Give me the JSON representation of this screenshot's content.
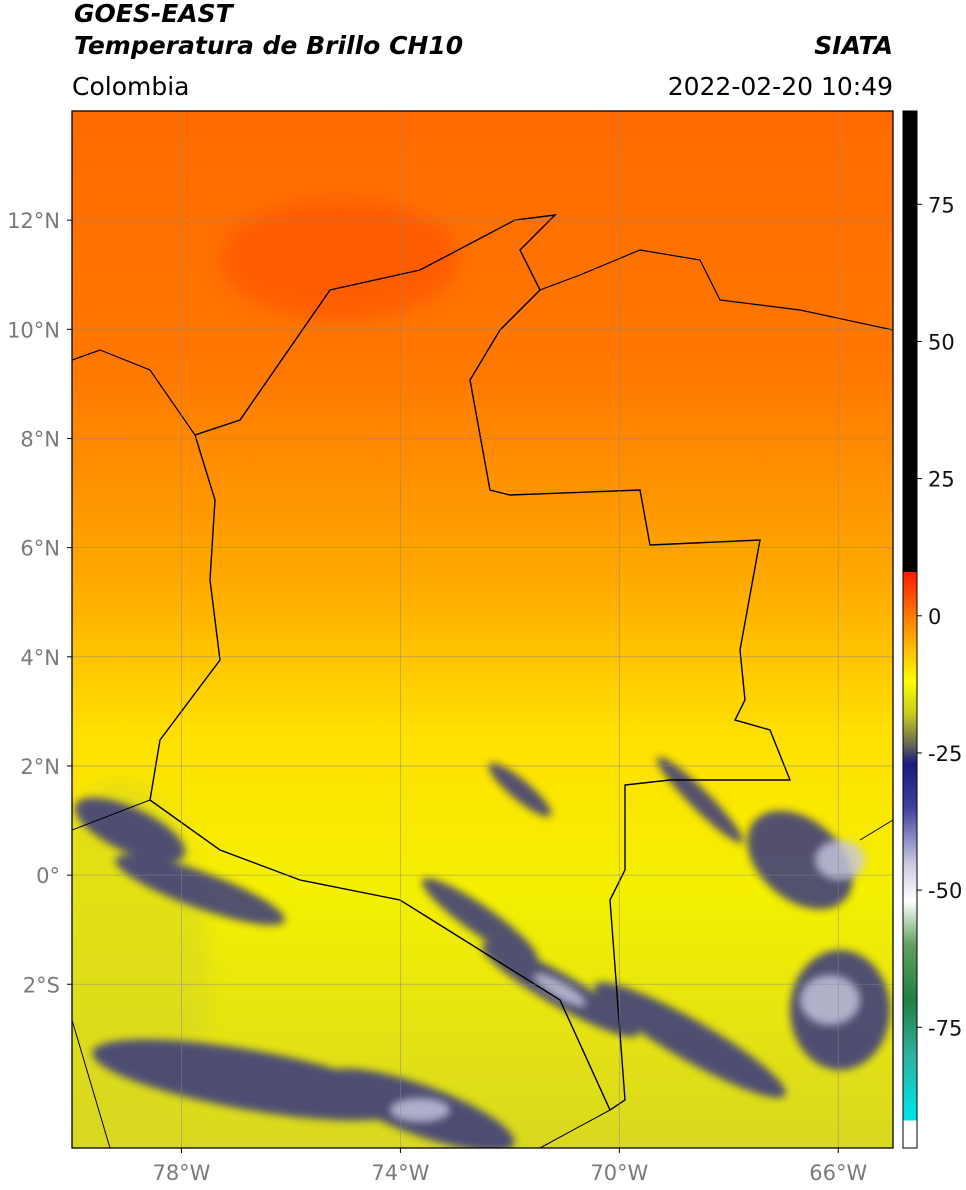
{
  "header": {
    "title": "GOES-EAST",
    "subtitle": "Temperatura de Brillo CH10",
    "source": "SIATA",
    "region": "Colombia",
    "datetime": "2022-02-20 10:49"
  },
  "map": {
    "xlim": [
      -80,
      -65
    ],
    "ylim": [
      -5,
      14
    ],
    "grid": true,
    "xticks": [
      {
        "value": -78,
        "label": "78°W"
      },
      {
        "value": -74,
        "label": "74°W"
      },
      {
        "value": -70,
        "label": "70°W"
      },
      {
        "value": -66,
        "label": "66°W"
      }
    ],
    "yticks": [
      {
        "value": 12,
        "label": "12°N"
      },
      {
        "value": 10,
        "label": "10°N"
      },
      {
        "value": 8,
        "label": "8°N"
      },
      {
        "value": 6,
        "label": "6°N"
      },
      {
        "value": 4,
        "label": "4°N"
      },
      {
        "value": 2,
        "label": "2°N"
      },
      {
        "value": 0,
        "label": "0°"
      },
      {
        "value": -2,
        "label": "2°S"
      }
    ]
  },
  "colorbar": {
    "lim": [
      -97,
      92
    ],
    "ticks": [
      -75,
      -50,
      -25,
      0,
      25,
      50,
      75
    ],
    "stops": [
      {
        "value": 92,
        "color": "#000000"
      },
      {
        "value": 8,
        "color": "#000000"
      },
      {
        "value": 8,
        "color": "#ff1a00"
      },
      {
        "value": 0,
        "color": "#ff7a00"
      },
      {
        "value": -12,
        "color": "#ffff00"
      },
      {
        "value": -18,
        "color": "#c8c820"
      },
      {
        "value": -23,
        "color": "#707050"
      },
      {
        "value": -27,
        "color": "#1a1a80"
      },
      {
        "value": -35,
        "color": "#4040a0"
      },
      {
        "value": -45,
        "color": "#c8c8e0"
      },
      {
        "value": -52,
        "color": "#ffffff"
      },
      {
        "value": -60,
        "color": "#60a060"
      },
      {
        "value": -70,
        "color": "#208040"
      },
      {
        "value": -80,
        "color": "#30b0a0"
      },
      {
        "value": -90,
        "color": "#00e0e0"
      },
      {
        "value": -92,
        "color": "#00e0e0"
      },
      {
        "value": -92,
        "color": "#ffffff"
      },
      {
        "value": -97,
        "color": "#ffffff"
      }
    ]
  }
}
